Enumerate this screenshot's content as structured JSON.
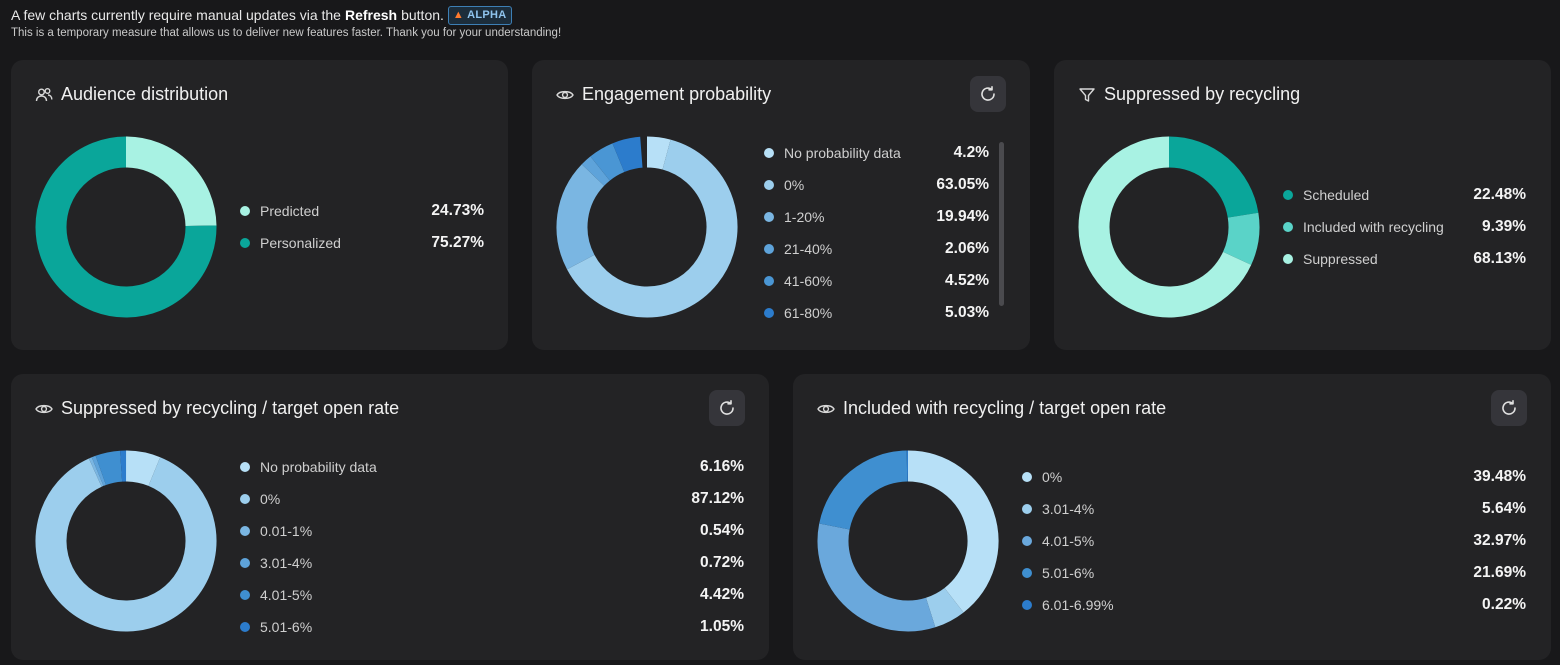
{
  "banner": {
    "text_before": "A few charts currently require manual updates via the",
    "bold": "Refresh",
    "text_after": "button.",
    "badge": "ALPHA",
    "subtext": "This is a temporary measure that allows us to deliver new features faster. Thank you for your understanding!"
  },
  "colors": {
    "background": "#18181a",
    "card": "#232325",
    "teal_dark": "#0aa69a",
    "teal_mid": "#5ad3c8",
    "teal_light": "#a8f2e3",
    "blue_1": "#b7e0f7",
    "blue_2": "#9cceed",
    "blue_3": "#7ab6e2",
    "blue_4": "#5ea3da",
    "blue_5": "#3f8fd0",
    "blue_6": "#2c7ccc"
  },
  "cards": [
    {
      "title": "Audience distribution",
      "icon": "users-icon",
      "has_refresh": false,
      "items": [
        {
          "label": "Predicted",
          "value": "24.73%",
          "pct": 24.73,
          "color": "#a8f2e3"
        },
        {
          "label": "Personalized",
          "value": "75.27%",
          "pct": 75.27,
          "color": "#0aa69a"
        }
      ]
    },
    {
      "title": "Engagement probability",
      "icon": "eye-icon",
      "has_refresh": true,
      "items": [
        {
          "label": "No probability data",
          "value": "4.2%",
          "pct": 4.2,
          "color": "#b7e0f7"
        },
        {
          "label": "0%",
          "value": "63.05%",
          "pct": 63.05,
          "color": "#9cceed"
        },
        {
          "label": "1-20%",
          "value": "19.94%",
          "pct": 19.94,
          "color": "#7ab6e2"
        },
        {
          "label": "21-40%",
          "value": "2.06%",
          "pct": 2.06,
          "color": "#5ea3da"
        },
        {
          "label": "41-60%",
          "value": "4.52%",
          "pct": 4.52,
          "color": "#4a96d4"
        },
        {
          "label": "61-80%",
          "value": "5.03%",
          "pct": 5.03,
          "color": "#2c7ccc"
        }
      ]
    },
    {
      "title": "Suppressed by recycling",
      "icon": "filter-icon",
      "has_refresh": false,
      "items": [
        {
          "label": "Scheduled",
          "value": "22.48%",
          "pct": 22.48,
          "color": "#0aa69a"
        },
        {
          "label": "Included with recycling",
          "value": "9.39%",
          "pct": 9.39,
          "color": "#5ad3c8"
        },
        {
          "label": "Suppressed",
          "value": "68.13%",
          "pct": 68.13,
          "color": "#a8f2e3"
        }
      ]
    },
    {
      "title": "Suppressed by recycling / target open rate",
      "icon": "eye-icon",
      "has_refresh": true,
      "items": [
        {
          "label": "No probability data",
          "value": "6.16%",
          "pct": 6.16,
          "color": "#b7e0f7"
        },
        {
          "label": "0%",
          "value": "87.12%",
          "pct": 87.12,
          "color": "#9cceed"
        },
        {
          "label": "0.01-1%",
          "value": "0.54%",
          "pct": 0.54,
          "color": "#7ab6e2"
        },
        {
          "label": "3.01-4%",
          "value": "0.72%",
          "pct": 0.72,
          "color": "#5ea3da"
        },
        {
          "label": "4.01-5%",
          "value": "4.42%",
          "pct": 4.42,
          "color": "#3f8fd0"
        },
        {
          "label": "5.01-6%",
          "value": "1.05%",
          "pct": 1.05,
          "color": "#2c7ccc"
        }
      ]
    },
    {
      "title": "Included with recycling / target open rate",
      "icon": "eye-icon",
      "has_refresh": true,
      "items": [
        {
          "label": "0%",
          "value": "39.48%",
          "pct": 39.48,
          "color": "#b7e0f7"
        },
        {
          "label": "3.01-4%",
          "value": "5.64%",
          "pct": 5.64,
          "color": "#9cceed"
        },
        {
          "label": "4.01-5%",
          "value": "32.97%",
          "pct": 32.97,
          "color": "#6aa8dc"
        },
        {
          "label": "5.01-6%",
          "value": "21.69%",
          "pct": 21.69,
          "color": "#3f8fd0"
        },
        {
          "label": "6.01-6.99%",
          "value": "0.22%",
          "pct": 0.22,
          "color": "#2c7ccc"
        }
      ]
    }
  ],
  "chart_data": [
    {
      "type": "pie",
      "title": "Audience distribution",
      "categories": [
        "Predicted",
        "Personalized"
      ],
      "values": [
        24.73,
        75.27
      ]
    },
    {
      "type": "pie",
      "title": "Engagement probability",
      "categories": [
        "No probability data",
        "0%",
        "1-20%",
        "21-40%",
        "41-60%",
        "61-80%"
      ],
      "values": [
        4.2,
        63.05,
        19.94,
        2.06,
        4.52,
        5.03
      ]
    },
    {
      "type": "pie",
      "title": "Suppressed by recycling",
      "categories": [
        "Scheduled",
        "Included with recycling",
        "Suppressed"
      ],
      "values": [
        22.48,
        9.39,
        68.13
      ]
    },
    {
      "type": "pie",
      "title": "Suppressed by recycling / target open rate",
      "categories": [
        "No probability data",
        "0%",
        "0.01-1%",
        "3.01-4%",
        "4.01-5%",
        "5.01-6%"
      ],
      "values": [
        6.16,
        87.12,
        0.54,
        0.72,
        4.42,
        1.05
      ]
    },
    {
      "type": "pie",
      "title": "Included with recycling / target open rate",
      "categories": [
        "0%",
        "3.01-4%",
        "4.01-5%",
        "5.01-6%",
        "6.01-6.99%"
      ],
      "values": [
        39.48,
        5.64,
        32.97,
        21.69,
        0.22
      ]
    }
  ]
}
